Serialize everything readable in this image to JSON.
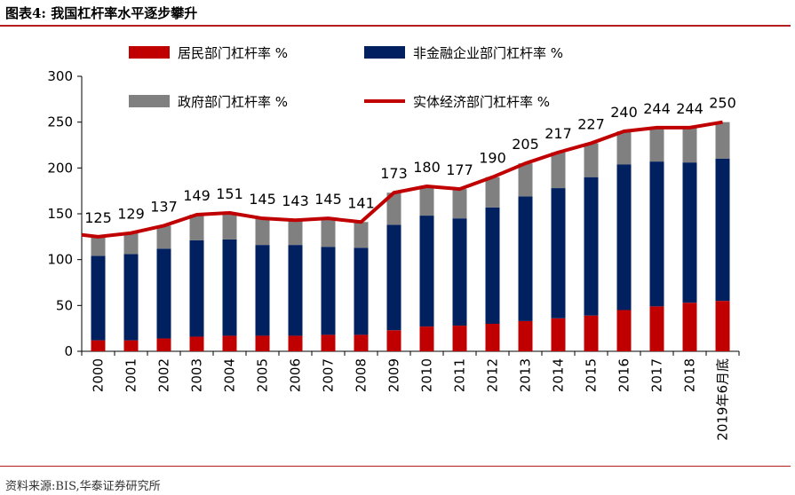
{
  "header": {
    "title": "图表4:   我国杠杆率水平逐步攀升"
  },
  "footer": {
    "source": "资料来源:BIS,华泰证券研究所"
  },
  "chart_data": {
    "type": "bar",
    "stacked": true,
    "categories": [
      "2000",
      "2001",
      "2002",
      "2003",
      "2004",
      "2005",
      "2006",
      "2007",
      "2008",
      "2009",
      "2010",
      "2011",
      "2012",
      "2013",
      "2014",
      "2015",
      "2016",
      "2017",
      "2018",
      "2019年6月底"
    ],
    "series": [
      {
        "name": "居民部门杠杆率 %",
        "kind": "bar",
        "color": "#c00000",
        "values": [
          12,
          12,
          14,
          16,
          17,
          17,
          17,
          18,
          18,
          23,
          27,
          28,
          30,
          33,
          36,
          39,
          45,
          49,
          53,
          55
        ]
      },
      {
        "name": "非金融企业部门杠杆率 %",
        "kind": "bar",
        "color": "#002060",
        "values": [
          92,
          94,
          98,
          105,
          105,
          99,
          99,
          96,
          95,
          115,
          121,
          117,
          127,
          136,
          142,
          151,
          159,
          158,
          153,
          155
        ]
      },
      {
        "name": "政府部门杠杆率 %",
        "kind": "bar",
        "color": "#808080",
        "values": [
          21,
          23,
          25,
          28,
          29,
          29,
          27,
          31,
          28,
          35,
          32,
          32,
          33,
          36,
          39,
          37,
          36,
          37,
          38,
          40
        ]
      },
      {
        "name": "实体经济部门杠杆率 %",
        "kind": "line",
        "color": "#c00000",
        "values": [
          125,
          129,
          137,
          149,
          151,
          145,
          143,
          145,
          141,
          173,
          180,
          177,
          190,
          205,
          217,
          227,
          240,
          244,
          244,
          250
        ]
      }
    ],
    "data_labels": [
      "125",
      "129",
      "137",
      "149",
      "151",
      "145",
      "143",
      "145",
      "141",
      "173",
      "180",
      "177",
      "190",
      "205",
      "217",
      "227",
      "240",
      "244",
      "244",
      "250"
    ],
    "ylim": [
      0,
      300
    ],
    "yticks": [
      "0",
      "50",
      "100",
      "150",
      "200",
      "250",
      "300"
    ],
    "xlabel": "",
    "ylabel": "",
    "grid": false,
    "legend": "top"
  }
}
